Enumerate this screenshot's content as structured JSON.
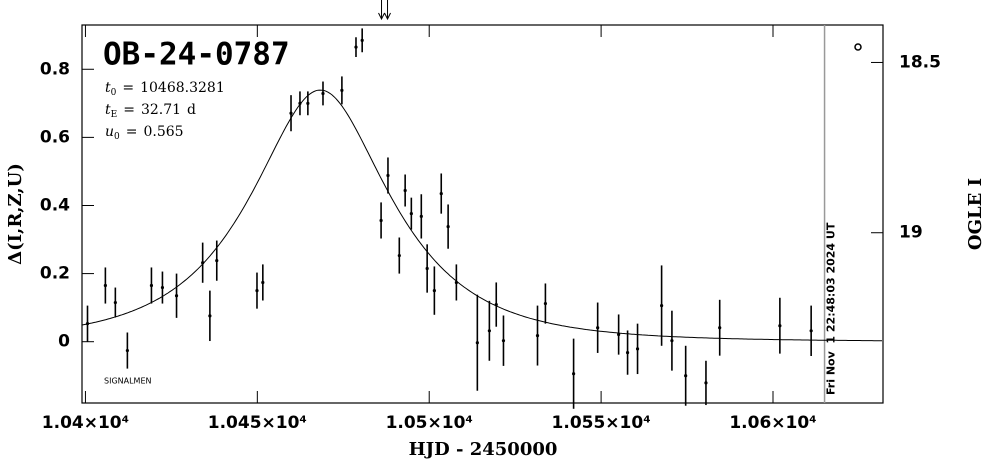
{
  "chart_data": {
    "type": "scatter",
    "title": "OB-24-0787",
    "xlabel": "HJD - 2450000",
    "ylabel": "Δ(I,R,Z,U)",
    "y2label": "OGLE I",
    "annotation": "SIGNALMEN",
    "date_label": "Fri Nov  1 22:48:03 2024 UT",
    "date_x": 10615,
    "arrow_x": 10487,
    "params": [
      {
        "symbol": "t",
        "sub": "0",
        "eq": "=",
        "value": 10468.3281
      },
      {
        "symbol": "t",
        "sub": "E",
        "eq": "=",
        "value": 32.71,
        "unit": "d"
      },
      {
        "symbol": "u",
        "sub": "0",
        "eq": "=",
        "value": 0.565
      }
    ],
    "model": {
      "t0": 10468.3281,
      "tE": 32.71,
      "u0": 0.565
    },
    "color": "#000000",
    "xlim": [
      10399,
      10632
    ],
    "ylim": [
      -0.18,
      0.93
    ],
    "y2lim": [
      19.5,
      18.39
    ],
    "xticks": [
      {
        "value": 10400,
        "label": "1.04×10⁴"
      },
      {
        "value": 10450,
        "label": "1.045×10⁴"
      },
      {
        "value": 10500,
        "label": "1.05×10⁴"
      },
      {
        "value": 10550,
        "label": "1.055×10⁴"
      },
      {
        "value": 10600,
        "label": "1.06×10⁴"
      }
    ],
    "yticks": [
      0,
      0.2,
      0.4,
      0.6,
      0.8
    ],
    "y2ticks": [
      18.5,
      19
    ],
    "x": [
      10400.6,
      10405.8,
      10408.7,
      10412.2,
      10419.2,
      10422.4,
      10426.5,
      10434.1,
      10436.2,
      10438.2,
      10449.9,
      10451.6,
      10459.8,
      10462.4,
      10464.7,
      10469.1,
      10474.6,
      10478.7,
      10480.5,
      10486.0,
      10488.0,
      10491.3,
      10493.0,
      10494.8,
      10497.7,
      10499.4,
      10501.5,
      10503.5,
      10505.5,
      10507.9,
      10514.0,
      10517.5,
      10519.5,
      10521.6,
      10531.5,
      10533.8,
      10542.0,
      10549.0,
      10555.1,
      10557.7,
      10560.6,
      10567.6,
      10570.6,
      10574.6,
      10580.5,
      10584.5,
      10602.0,
      10611.1
    ],
    "values": [
      0.053,
      0.165,
      0.115,
      -0.026,
      0.165,
      0.159,
      0.135,
      0.232,
      0.076,
      0.238,
      0.15,
      0.174,
      0.671,
      0.7,
      0.7,
      0.729,
      0.738,
      0.865,
      0.885,
      0.356,
      0.488,
      0.253,
      0.444,
      0.376,
      0.368,
      0.215,
      0.15,
      0.435,
      0.338,
      0.174,
      -0.003,
      0.032,
      0.109,
      0.003,
      0.018,
      0.112,
      -0.094,
      0.041,
      0.021,
      -0.032,
      -0.021,
      0.106,
      0.003,
      -0.1,
      -0.121,
      0.041,
      0.047,
      0.032
    ],
    "errors": [
      0.053,
      0.053,
      0.044,
      0.053,
      0.053,
      0.047,
      0.065,
      0.059,
      0.074,
      0.059,
      0.053,
      0.053,
      0.053,
      0.035,
      0.035,
      0.035,
      0.041,
      0.029,
      0.035,
      0.053,
      0.053,
      0.053,
      0.047,
      0.047,
      0.065,
      0.071,
      0.071,
      0.059,
      0.065,
      0.053,
      0.141,
      0.088,
      0.065,
      0.074,
      0.088,
      0.059,
      0.103,
      0.074,
      0.059,
      0.065,
      0.074,
      0.118,
      0.088,
      0.088,
      0.065,
      0.082,
      0.082,
      0.074
    ]
  }
}
